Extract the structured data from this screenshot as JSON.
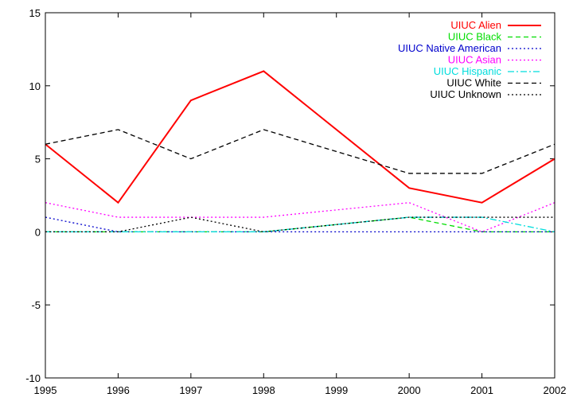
{
  "chart_data": {
    "type": "line",
    "title": "",
    "xlabel": "",
    "ylabel": "",
    "x": [
      1995,
      1996,
      1997,
      1998,
      2000,
      2001,
      2002
    ],
    "x_ticks": [
      "1995",
      "1996",
      "1997",
      "1998",
      "1999",
      "2000",
      "2001",
      "2002"
    ],
    "y_ticks": [
      "-10",
      "-5",
      "0",
      "5",
      "10",
      "15"
    ],
    "xlim": [
      1995,
      2002
    ],
    "ylim": [
      -10,
      15
    ],
    "grid": false,
    "legend_position": "top-right",
    "series": [
      {
        "name": "UIUC Alien",
        "color": "#ff0000",
        "dash": "solid",
        "values": [
          6,
          2,
          9,
          11,
          3,
          2,
          5
        ]
      },
      {
        "name": "UIUC Black",
        "color": "#00dd00",
        "dash": "dashed",
        "values": [
          0,
          0,
          0,
          0,
          1,
          0,
          0
        ]
      },
      {
        "name": "UIUC Native American",
        "color": "#0000cc",
        "dash": "dotted",
        "values": [
          1,
          0,
          0,
          0,
          0,
          0,
          0
        ]
      },
      {
        "name": "UIUC Asian",
        "color": "#ff00ff",
        "dash": "dotted",
        "values": [
          2,
          1,
          1,
          1,
          2,
          0,
          2
        ]
      },
      {
        "name": "UIUC Hispanic",
        "color": "#00dddd",
        "dash": "dashdot",
        "values": [
          0,
          0,
          0,
          0,
          1,
          1,
          0
        ]
      },
      {
        "name": "UIUC White",
        "color": "#000000",
        "dash": "dashed",
        "values": [
          6,
          7,
          5,
          7,
          4,
          4,
          6
        ]
      },
      {
        "name": "UIUC Unknown",
        "color": "#000000",
        "dash": "dotted",
        "values": [
          0,
          0,
          1,
          0,
          1,
          1,
          1
        ]
      }
    ]
  }
}
